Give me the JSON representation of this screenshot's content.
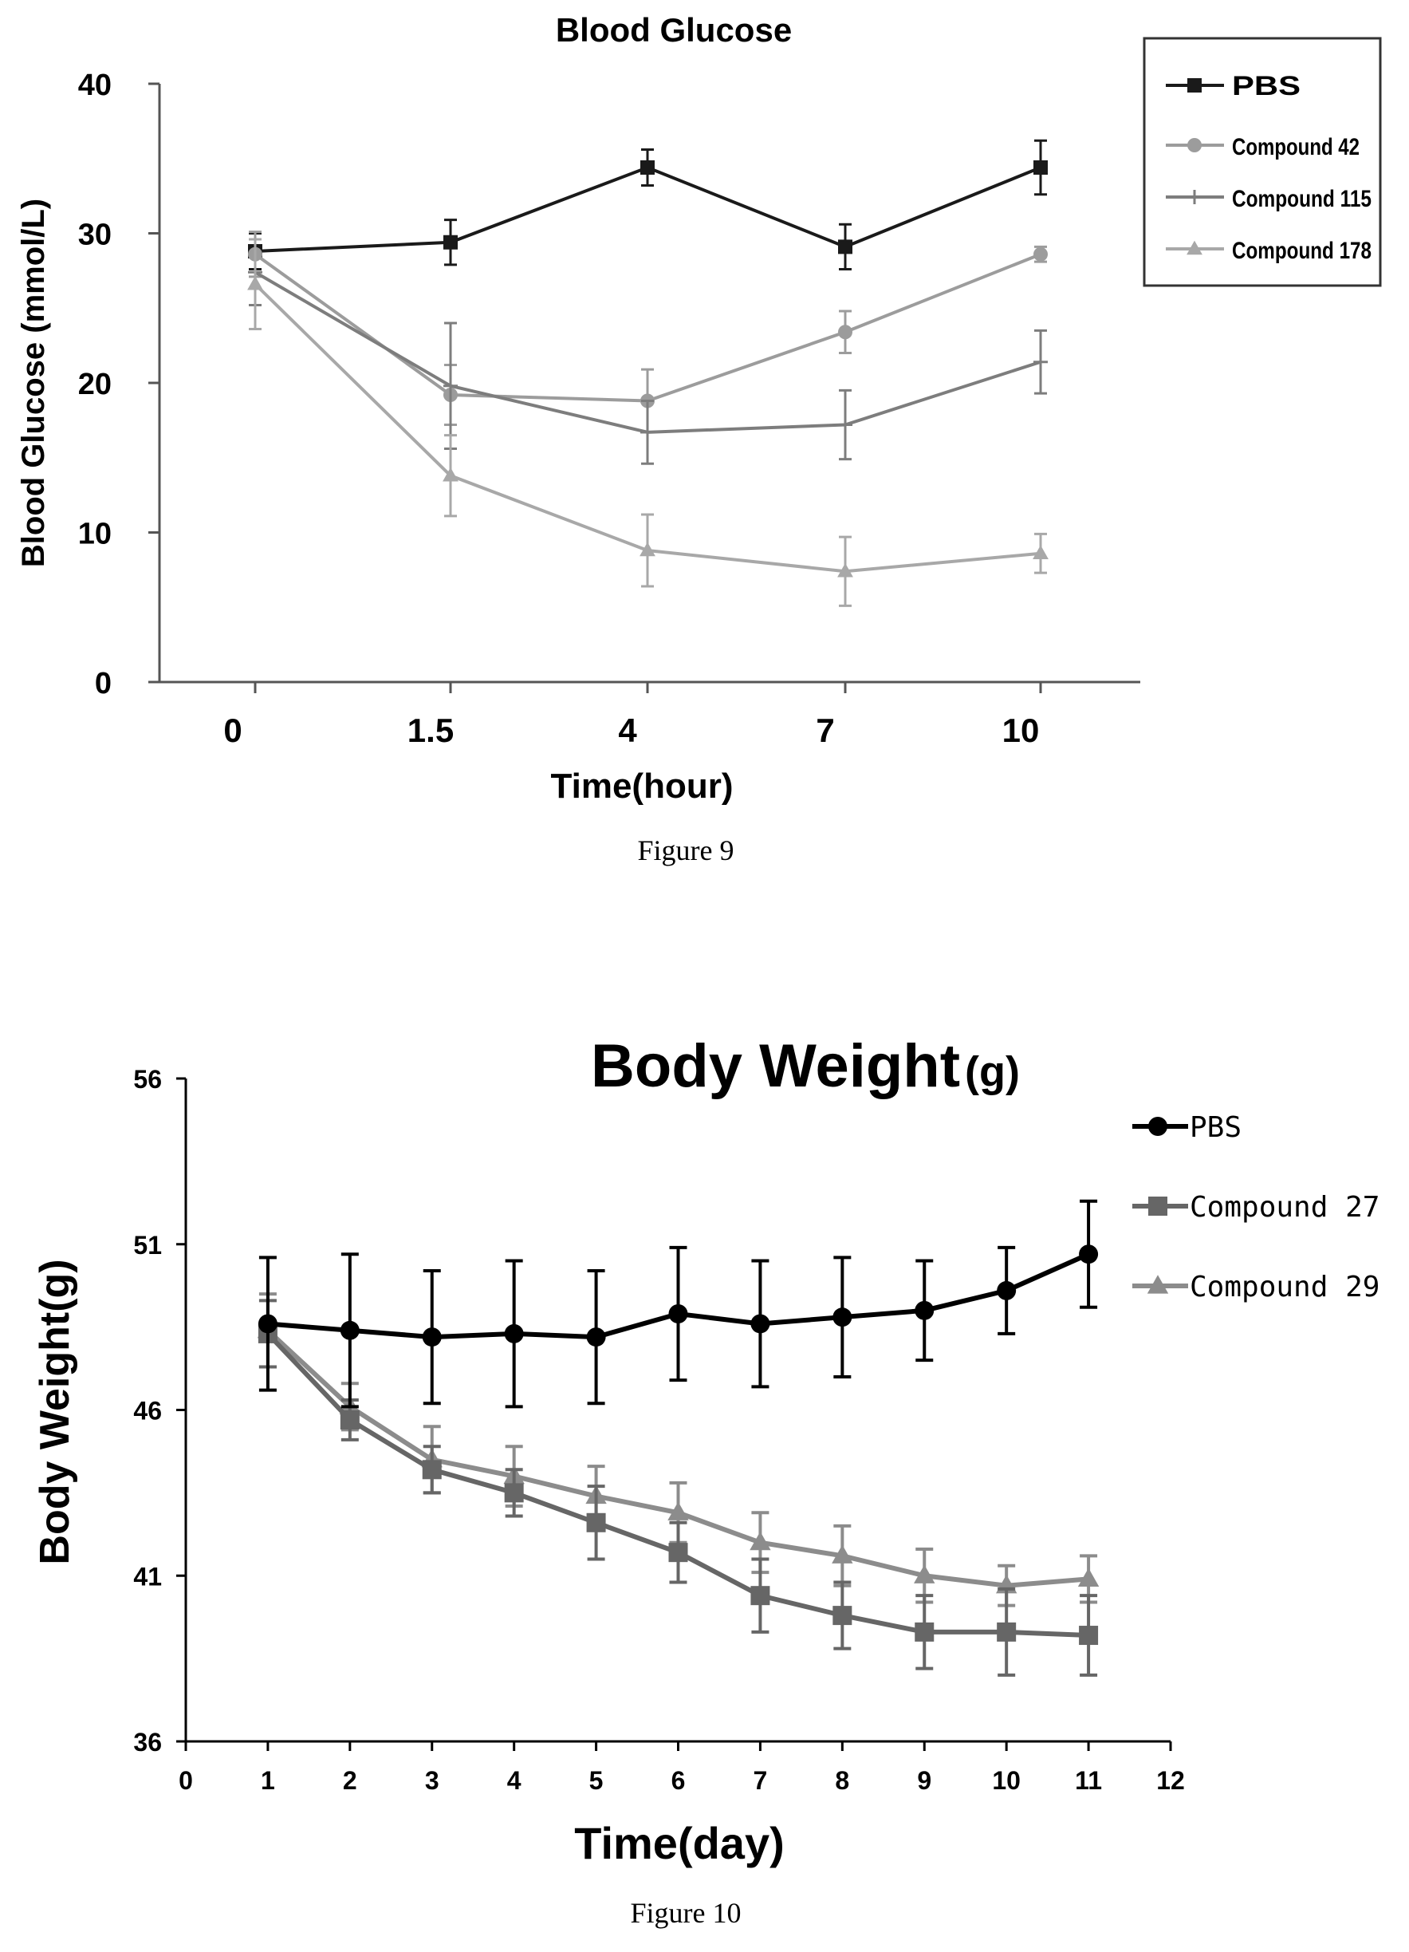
{
  "figures": [
    {
      "caption": "Figure 9"
    },
    {
      "caption": "Figure 10"
    }
  ],
  "chart_data": [
    {
      "type": "line",
      "title": "Blood Glucose",
      "xlabel": "Time(hour)",
      "ylabel": "Blood Glucose (mmol/L)",
      "categories": [
        "0",
        "1.5",
        "4",
        "7",
        "10"
      ],
      "yticks": [
        "0",
        "10",
        "20",
        "30",
        "40"
      ],
      "ylim": [
        0,
        40
      ],
      "legend_position": "top-right",
      "grid": false,
      "series": [
        {
          "name": "PBS",
          "color": "#1a1a1a",
          "marker": "square",
          "values": [
            28.8,
            29.4,
            34.4,
            29.1,
            34.4
          ],
          "errors": [
            1.2,
            1.5,
            1.2,
            1.5,
            1.8
          ]
        },
        {
          "name": "Compound 42",
          "color": "#9c9c9c",
          "marker": "circle",
          "values": [
            28.6,
            19.2,
            18.8,
            23.4,
            28.6
          ],
          "errors": [
            1.5,
            2.0,
            2.1,
            1.4,
            0.5
          ]
        },
        {
          "name": "Compound 115",
          "color": "#7d7d7d",
          "marker": "cross",
          "values": [
            27.4,
            19.8,
            16.7,
            17.2,
            21.4
          ],
          "errors": [
            2.2,
            4.2,
            2.1,
            2.3,
            2.1
          ]
        },
        {
          "name": "Compound 178",
          "color": "#a8a8a8",
          "marker": "triangle",
          "values": [
            26.6,
            13.8,
            8.8,
            7.4,
            8.6
          ],
          "errors": [
            3.0,
            2.7,
            2.4,
            2.3,
            1.3
          ]
        }
      ]
    },
    {
      "type": "line",
      "title": "Body Weight(g)",
      "xlabel": "Time(day)",
      "ylabel": "Body Weight(g)",
      "x": [
        1,
        2,
        3,
        4,
        5,
        6,
        7,
        8,
        9,
        10,
        11
      ],
      "xticks": [
        "0",
        "1",
        "2",
        "3",
        "4",
        "5",
        "6",
        "7",
        "8",
        "9",
        "10",
        "11",
        "12"
      ],
      "yticks": [
        "36",
        "41",
        "46",
        "51",
        "56"
      ],
      "xlim": [
        0,
        12
      ],
      "ylim": [
        36,
        56
      ],
      "legend_position": "top-right",
      "grid": false,
      "series": [
        {
          "name": "PBS",
          "color": "#000000",
          "marker": "circle",
          "values": [
            48.6,
            48.4,
            48.2,
            48.3,
            48.2,
            48.9,
            48.6,
            48.8,
            49.0,
            49.6,
            50.7
          ],
          "errors": [
            2.0,
            2.3,
            2.0,
            2.2,
            2.0,
            2.0,
            1.9,
            1.8,
            1.5,
            1.3,
            1.6
          ]
        },
        {
          "name": "Compound 27",
          "color": "#666666",
          "marker": "square",
          "values": [
            48.3,
            45.7,
            44.2,
            43.5,
            42.6,
            41.7,
            40.4,
            39.8,
            39.3,
            39.3,
            39.2
          ],
          "errors": [
            1.0,
            0.6,
            0.7,
            0.7,
            1.1,
            0.9,
            1.1,
            1.0,
            1.1,
            1.3,
            1.2
          ]
        },
        {
          "name": "Compound 29",
          "color": "#8c8c8c",
          "marker": "triangle",
          "values": [
            48.4,
            46.1,
            44.5,
            44.0,
            43.4,
            42.9,
            42.0,
            41.6,
            41.0,
            40.7,
            40.9
          ],
          "errors": [
            1.1,
            0.7,
            1.0,
            0.9,
            0.9,
            0.9,
            0.9,
            0.9,
            0.8,
            0.6,
            0.7
          ]
        }
      ]
    }
  ]
}
